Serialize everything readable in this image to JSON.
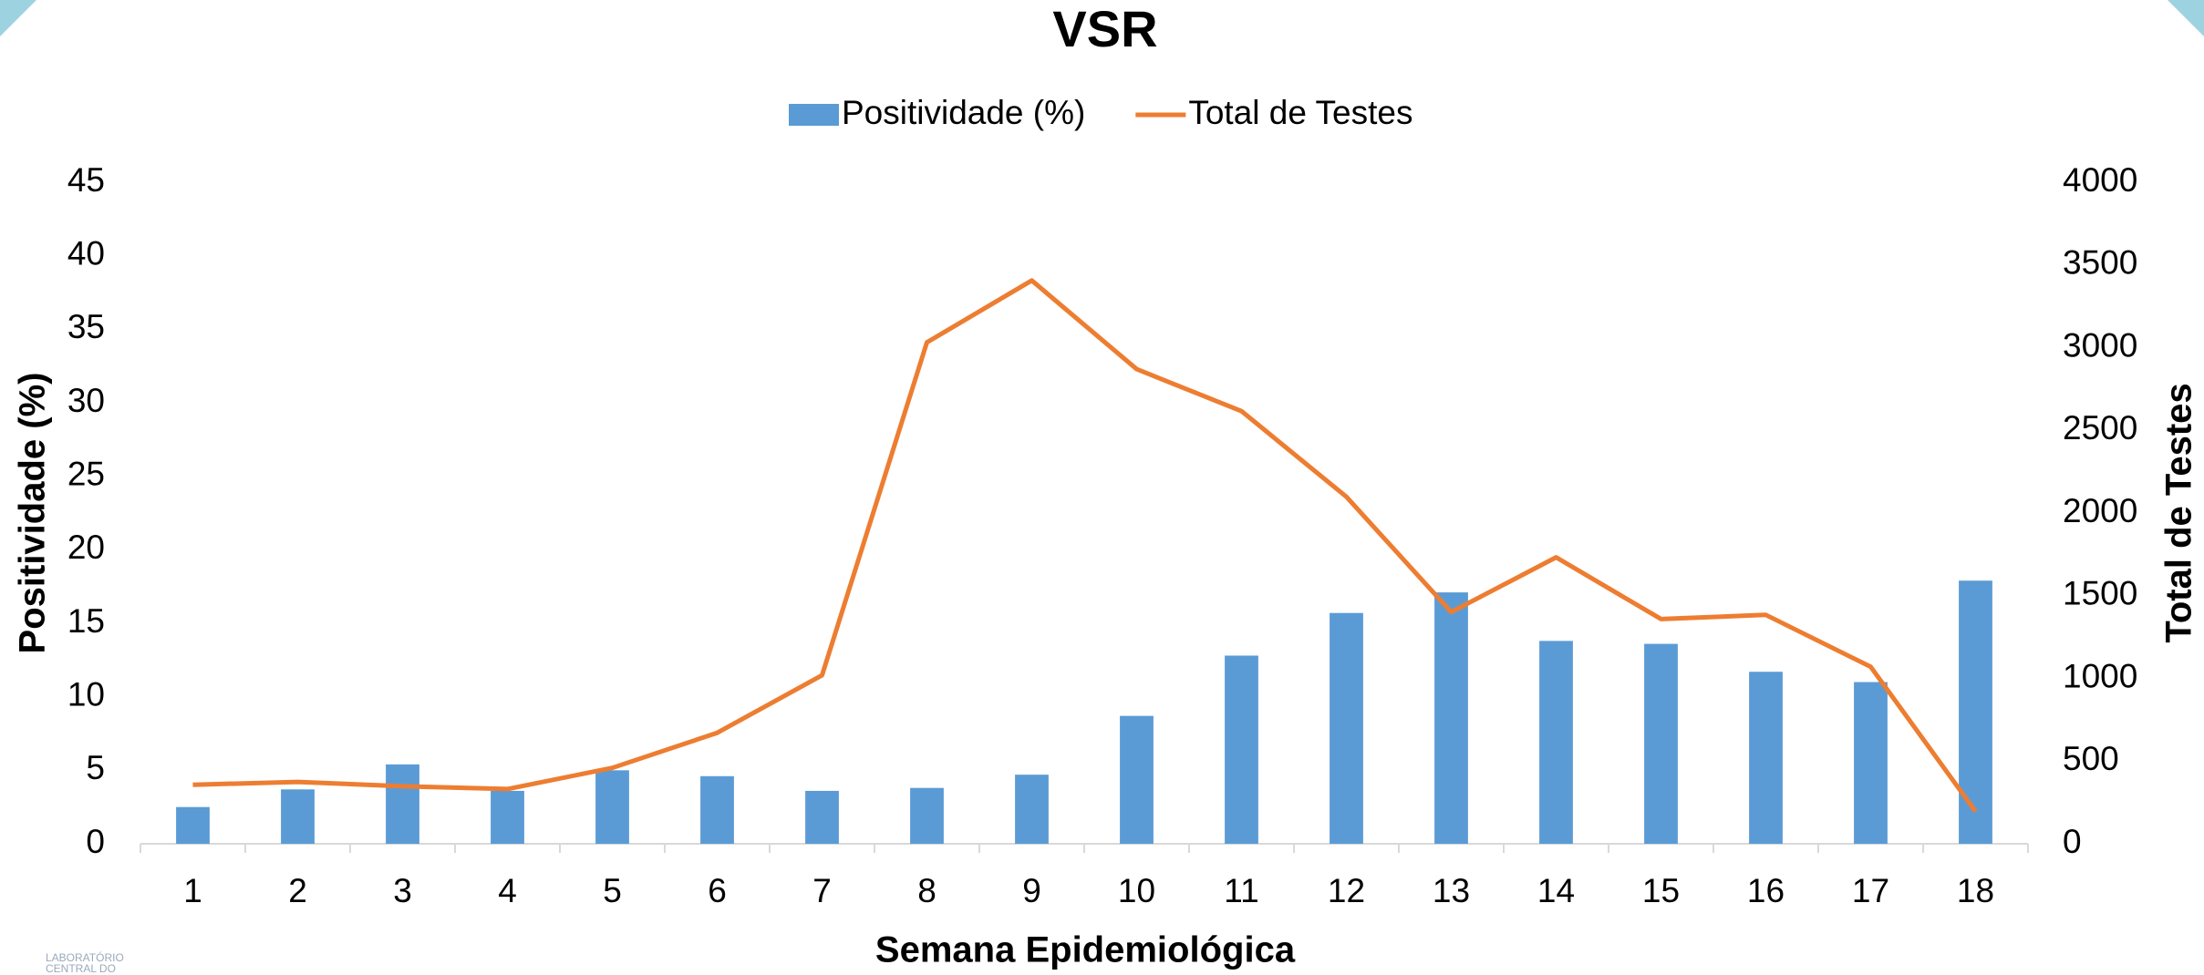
{
  "chart_data": {
    "type": "bar_line",
    "title": "VSR",
    "xlabel": "Semana Epidemiológica",
    "ylabel": "Positividade (%)",
    "y2label": "Total de Testes",
    "categories": [
      "1",
      "2",
      "3",
      "4",
      "5",
      "6",
      "7",
      "8",
      "9",
      "10",
      "11",
      "12",
      "13",
      "14",
      "15",
      "16",
      "17",
      "18"
    ],
    "series": [
      {
        "name": "Positividade (%)",
        "type": "bar",
        "color": "#5b9bd5",
        "axis": "y",
        "values": [
          2.5,
          3.7,
          5.4,
          3.6,
          5.0,
          4.6,
          3.6,
          3.8,
          4.7,
          8.7,
          12.8,
          15.7,
          17.1,
          13.8,
          13.6,
          11.7,
          11.0,
          17.9
        ]
      },
      {
        "name": "Total de Testes",
        "type": "line",
        "color": "#ed7d31",
        "axis": "y2",
        "values": [
          357,
          374,
          348,
          331,
          459,
          671,
          1019,
          3032,
          3406,
          2870,
          2616,
          2098,
          1401,
          1732,
          1359,
          1384,
          1070,
          195
        ]
      }
    ],
    "ylim": [
      0,
      45
    ],
    "yticks": [
      0,
      5,
      10,
      15,
      20,
      25,
      30,
      35,
      40,
      45
    ],
    "y2lim": [
      0,
      4000
    ],
    "y2ticks": [
      0,
      500,
      1000,
      1500,
      2000,
      2500,
      3000,
      3500,
      4000
    ],
    "legend": "top",
    "grid": false
  },
  "footer_logo": [
    "LABORATÓRIO",
    "CENTRAL DO"
  ]
}
